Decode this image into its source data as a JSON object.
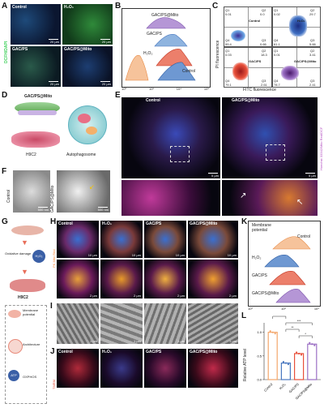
{
  "panels": {
    "A": {
      "label": "A",
      "side_label": "DCFH/DAPI",
      "images": [
        "Control",
        "H₂O₂",
        "GAC/PS",
        "GAC/PS@Mito"
      ],
      "scalebar": "20 µm"
    },
    "B": {
      "label": "B",
      "curves": [
        "GAC/PS@Mito",
        "GAC/PS",
        "H₂O₂",
        "Control"
      ],
      "ticks": [
        "10⁰",
        "10²",
        "10⁴",
        "10⁶"
      ],
      "colors": [
        "#9b6fc4",
        "#7aa8d8",
        "#e8503a",
        "#4a78c0",
        "#f3a66b"
      ]
    },
    "C": {
      "label": "C",
      "xlabel": "FITC fluorescence",
      "ylabel": "PI fluorescence",
      "plots": [
        {
          "name": "Control",
          "q": [
            "Q1",
            "0.01",
            "Q2",
            "0.0",
            "Q4",
            "99.4",
            "Q3",
            "0.66"
          ]
        },
        {
          "name": "H₂O₂",
          "q": [
            "Q1",
            "0.02",
            "Q2",
            "29.7",
            "Q4",
            "61.1",
            "Q3",
            "5.66"
          ]
        },
        {
          "name": "GAC/PS",
          "q": [
            "Q1",
            "0.03",
            "Q2",
            "18.3",
            "Q4",
            "79.1",
            "Q3",
            "2.61"
          ]
        },
        {
          "name": "GAC/PS@Mito",
          "q": [
            "Q1",
            "0.01",
            "Q2",
            "3.41",
            "Q4",
            "78.7",
            "Q3",
            "2.41"
          ]
        }
      ]
    },
    "D": {
      "label": "D",
      "top": "GAC/PS@Mito",
      "left": "H9C2",
      "right": "Autophagosome"
    },
    "E": {
      "label": "E",
      "left": "Control",
      "right": "GAC/PS@Mito",
      "scale": "5 µm",
      "side": "PK Mito Red",
      "side2": "Hoechst 33342/Mito Red/DCF"
    },
    "F": {
      "label": "F",
      "top": "Control",
      "bottom": "GAC/PS@Mito",
      "scale": "500 nm"
    },
    "G": {
      "label": "G",
      "cell": "H9C2",
      "damage": "Oxidative damage",
      "labels": [
        "Membrane potential",
        "Architecture",
        "OXPHOS"
      ],
      "badges": [
        "H₂O₂",
        "ATP"
      ]
    },
    "H": {
      "label": "H",
      "cols": [
        "Control",
        "H₂O₂",
        "GAC/PS",
        "GAC/PS@Mito"
      ],
      "side": "PK Mito Red",
      "scale_top": "10 µm",
      "scale_bottom": "2 µm"
    },
    "I": {
      "label": "I",
      "scale": "1 µm"
    },
    "J": {
      "label": "J",
      "cols": [
        "Control",
        "H₂O₂",
        "GAC/PS",
        "GAC/PS@Mito"
      ],
      "side": "TMRM"
    },
    "K": {
      "label": "K",
      "title": "Membrane potential",
      "curves": [
        "Control",
        "H₂O₂",
        "GAC/PS",
        "GAC/PS@Mito"
      ],
      "ticks": [
        "10⁰",
        "10²",
        "10⁴"
      ]
    },
    "L": {
      "label": "L",
      "ylabel": "Relative ATP level",
      "categories": [
        "Control",
        "H₂O₂",
        "GAC/PS",
        "GAC/PS@Mito"
      ],
      "values": [
        1.0,
        0.35,
        0.55,
        0.75
      ],
      "colors": [
        "#f3a66b",
        "#4a78c0",
        "#e8503a",
        "#9b6fc4"
      ],
      "sig": [
        "****",
        "**",
        "***",
        "*"
      ],
      "yticks": [
        "0.0",
        "0.5",
        "1.0"
      ]
    }
  },
  "chart_data": [
    {
      "type": "bar",
      "title": "",
      "xlabel": "",
      "ylabel": "Relative ATP level",
      "categories": [
        "Control",
        "H₂O₂",
        "GAC/PS",
        "GAC/PS@Mito"
      ],
      "values": [
        1.0,
        0.35,
        0.55,
        0.75
      ],
      "ylim": [
        0,
        1.2
      ]
    }
  ]
}
